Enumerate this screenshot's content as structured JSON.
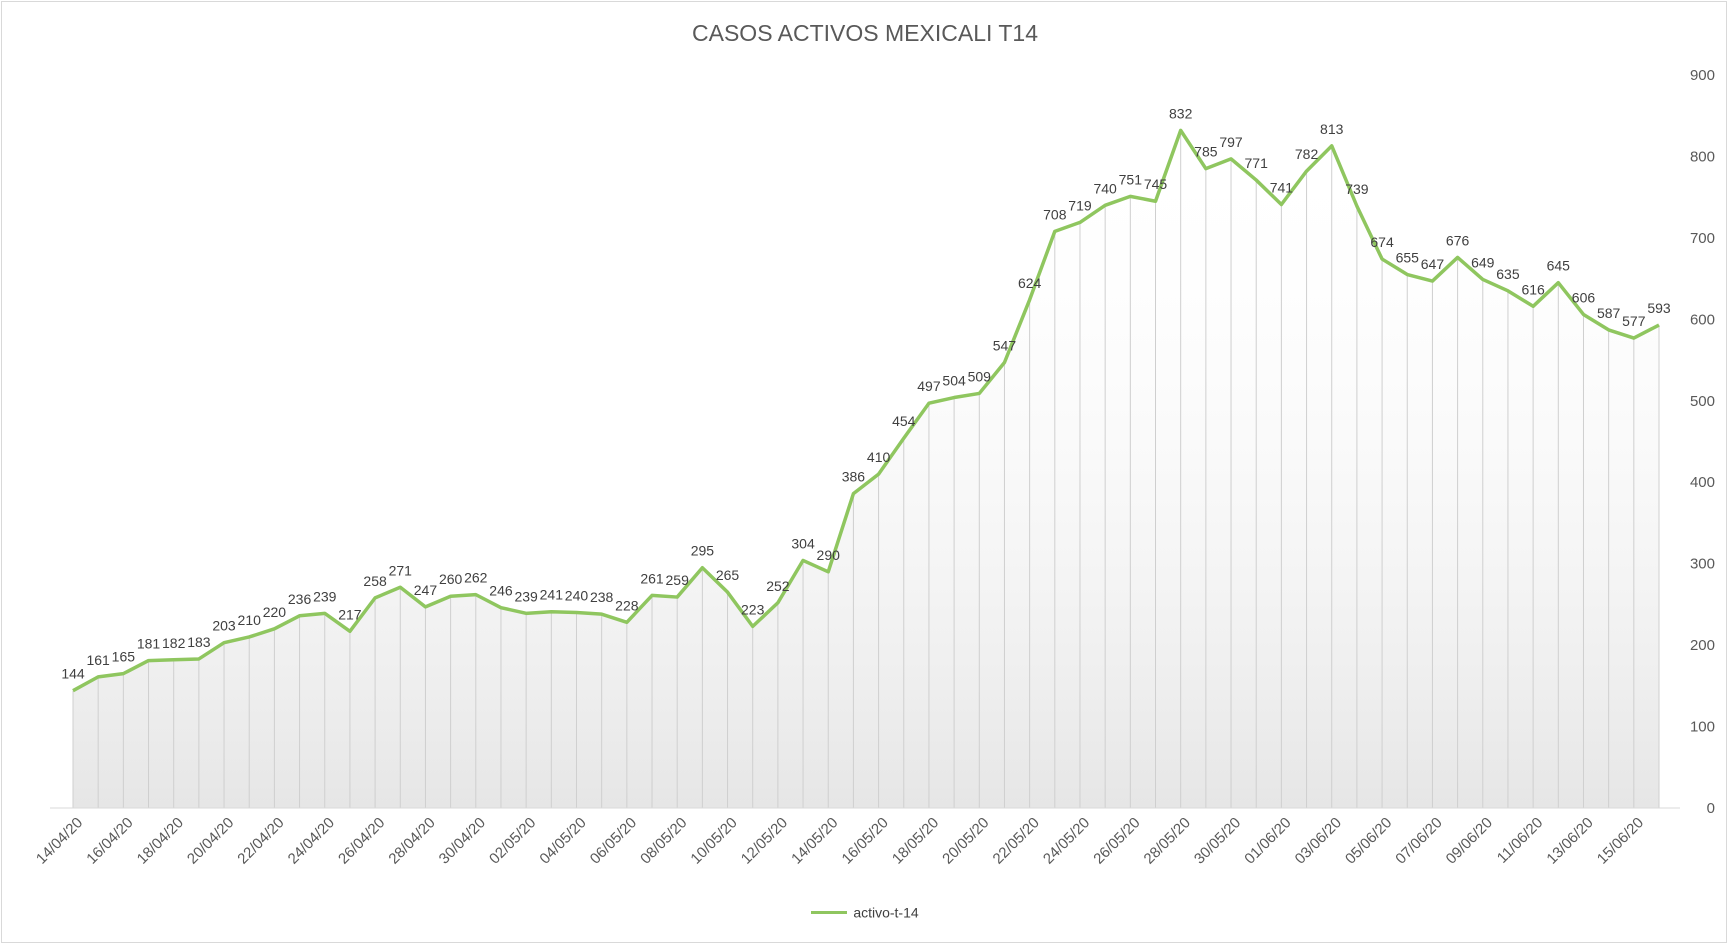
{
  "chart_data": {
    "type": "area",
    "title": "CASOS ACTIVOS MEXICALI T14",
    "xlabel": "",
    "ylabel": "",
    "ylim": [
      0,
      900
    ],
    "yticks": [
      0,
      100,
      200,
      300,
      400,
      500,
      600,
      700,
      800,
      900
    ],
    "y_axis_position": "right",
    "grid": false,
    "drop_lines": true,
    "legend_position": "bottom",
    "x_tick_labels": [
      "14/04/20",
      "16/04/20",
      "18/04/20",
      "20/04/20",
      "22/04/20",
      "24/04/20",
      "26/04/20",
      "28/04/20",
      "30/04/20",
      "02/05/20",
      "04/05/20",
      "06/05/20",
      "08/05/20",
      "10/05/20",
      "12/05/20",
      "14/05/20",
      "16/05/20",
      "18/05/20",
      "20/05/20",
      "22/05/20",
      "24/05/20",
      "26/05/20",
      "28/05/20",
      "30/05/20",
      "01/06/20",
      "03/06/20",
      "05/06/20",
      "07/06/20",
      "09/06/20",
      "11/06/20",
      "13/06/20",
      "15/06/20"
    ],
    "x_tick_every": 2,
    "series": [
      {
        "name": "activo-t-14",
        "color": "#8fc65f",
        "values": [
          144,
          161,
          165,
          181,
          182,
          183,
          203,
          210,
          220,
          236,
          239,
          217,
          258,
          271,
          247,
          260,
          262,
          246,
          239,
          241,
          240,
          238,
          228,
          261,
          259,
          295,
          265,
          223,
          252,
          304,
          290,
          386,
          410,
          454,
          497,
          504,
          509,
          547,
          624,
          708,
          719,
          740,
          751,
          745,
          832,
          785,
          797,
          771,
          741,
          782,
          813,
          739,
          674,
          655,
          647,
          676,
          649,
          635,
          616,
          645,
          606,
          587,
          577,
          593
        ]
      }
    ]
  }
}
